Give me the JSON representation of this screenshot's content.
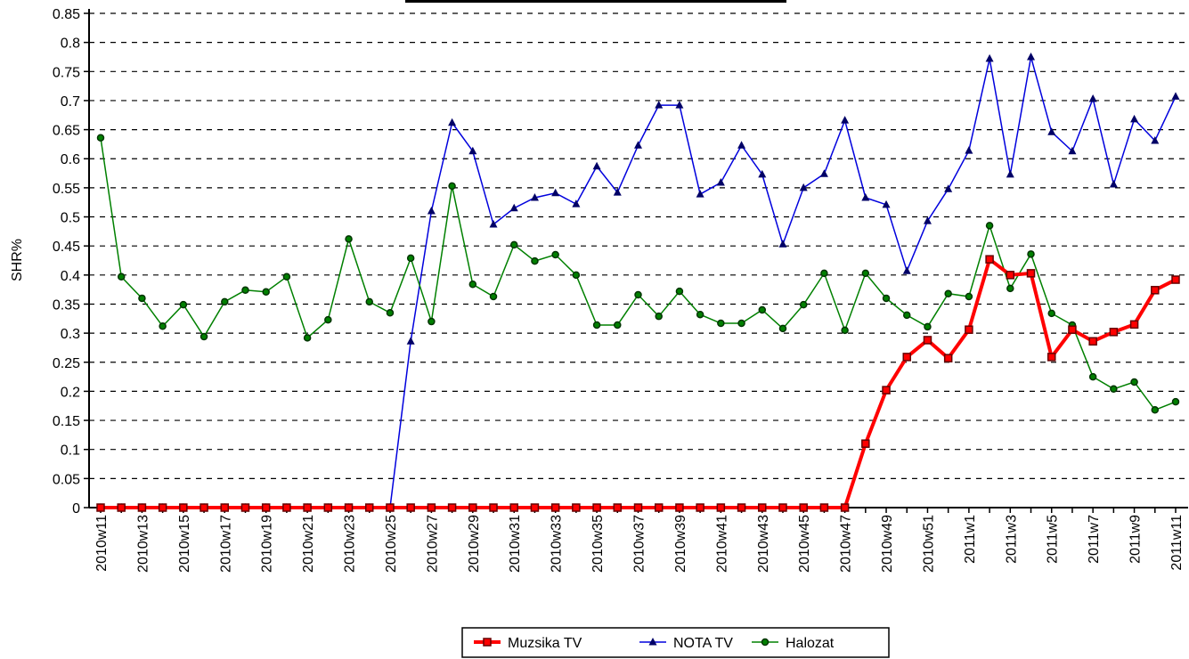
{
  "chart_data": {
    "type": "line",
    "y_label": "SHR%",
    "categories": [
      "2010w11",
      null,
      "2010w13",
      null,
      "2010w15",
      null,
      "2010w17",
      null,
      "2010w19",
      null,
      "2010w21",
      null,
      "2010w23",
      null,
      "2010w25",
      null,
      "2010w27",
      null,
      "2010w29",
      null,
      "2010w31",
      null,
      "2010w33",
      null,
      "2010w35",
      null,
      "2010w37",
      null,
      "2010w39",
      null,
      "2010w41",
      null,
      "2010w43",
      null,
      "2010w45",
      null,
      "2010w47",
      null,
      "2010w49",
      null,
      "2010w51",
      null,
      "2011w1",
      null,
      "2011w3",
      null,
      "2011w5",
      null,
      "2011w7",
      null,
      "2011w9",
      null,
      "2011w11"
    ],
    "ylim": [
      0,
      0.85
    ],
    "yticks": [
      0,
      0.05,
      0.1,
      0.15,
      0.2,
      0.25,
      0.3,
      0.35,
      0.4,
      0.45,
      0.5,
      0.55,
      0.6,
      0.65,
      0.7,
      0.75,
      0.8,
      0.85
    ],
    "grid": true,
    "legend": "bottom",
    "series": [
      {
        "name": "Muzsika TV",
        "color": "#ff0000",
        "marker": "square",
        "values": [
          0,
          0,
          0,
          0,
          0,
          0,
          0,
          0,
          0,
          0,
          0,
          0,
          0,
          0,
          0,
          0,
          0,
          0,
          0,
          0,
          0,
          0,
          0,
          0,
          0,
          0,
          0,
          0,
          0,
          0,
          0,
          0,
          0,
          0,
          0,
          0,
          0,
          0.11,
          0.202,
          0.259,
          0.288,
          0.257,
          0.306,
          0.427,
          0.4,
          0.403,
          0.259,
          0.306,
          0.286,
          0.302,
          0.315,
          0.374,
          0.392
        ]
      },
      {
        "name": "NOTA TV",
        "color": "#0000dd",
        "marker": "triangle",
        "values": [
          0,
          0,
          0,
          0,
          0,
          0,
          0,
          0,
          0,
          0,
          0,
          0,
          0,
          0,
          0,
          0.286,
          0.51,
          0.662,
          0.613,
          0.487,
          0.515,
          0.533,
          0.541,
          0.522,
          0.587,
          0.542,
          0.623,
          0.692,
          0.692,
          0.539,
          0.559,
          0.623,
          0.573,
          0.453,
          0.55,
          0.574,
          0.666,
          0.533,
          0.521,
          0.407,
          0.493,
          0.548,
          0.614,
          0.772,
          0.573,
          0.775,
          0.646,
          0.613,
          0.703,
          0.556,
          0.668,
          0.631,
          0.707
        ]
      },
      {
        "name": "Halozat",
        "color": "#008000",
        "marker": "circle",
        "values": [
          0.636,
          0.397,
          0.36,
          0.312,
          0.349,
          0.294,
          0.354,
          0.374,
          0.371,
          0.397,
          0.292,
          0.323,
          0.462,
          0.354,
          0.335,
          0.429,
          0.32,
          0.553,
          0.384,
          0.363,
          0.452,
          0.424,
          0.435,
          0.4,
          0.314,
          0.314,
          0.366,
          0.329,
          0.372,
          0.332,
          0.317,
          0.317,
          0.34,
          0.308,
          0.349,
          0.403,
          0.305,
          0.403,
          0.36,
          0.331,
          0.311,
          0.368,
          0.363,
          0.485,
          0.377,
          0.436,
          0.334,
          0.314,
          0.225,
          0.204,
          0.216,
          0.168,
          0.182
        ]
      }
    ]
  }
}
